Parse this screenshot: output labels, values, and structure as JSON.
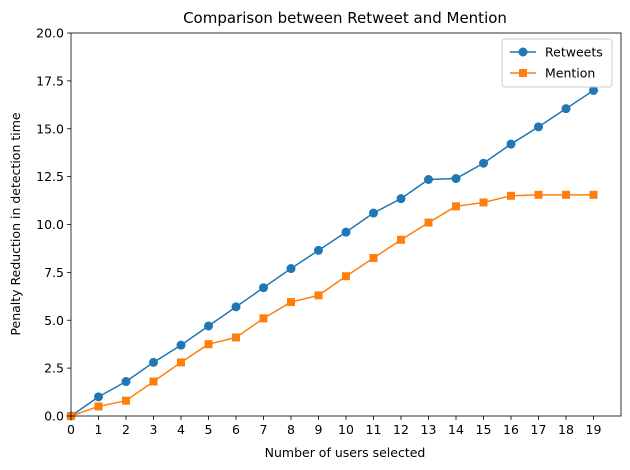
{
  "chart_data": {
    "type": "line",
    "title": "Comparison between Retweet and Mention",
    "xlabel": "Number of users selected",
    "ylabel": "Penalty Reduction in detection time",
    "x": [
      0,
      1,
      2,
      3,
      4,
      5,
      6,
      7,
      8,
      9,
      10,
      11,
      12,
      13,
      14,
      15,
      16,
      17,
      18,
      19
    ],
    "xlim": [
      0,
      20
    ],
    "ylim": [
      0,
      20
    ],
    "xticks": [
      "0",
      "1",
      "2",
      "3",
      "4",
      "5",
      "6",
      "7",
      "8",
      "9",
      "10",
      "11",
      "12",
      "13",
      "14",
      "15",
      "16",
      "17",
      "18",
      "19"
    ],
    "yticks": [
      "0.0",
      "2.5",
      "5.0",
      "7.5",
      "10.0",
      "12.5",
      "15.0",
      "17.5",
      "20.0"
    ],
    "grid": false,
    "legend_position": "top-right",
    "series": [
      {
        "name": "Retweets",
        "color": "#1f77b4",
        "marker": "circle",
        "values": [
          0.0,
          1.0,
          1.8,
          2.8,
          3.7,
          4.7,
          5.7,
          6.7,
          7.7,
          8.65,
          9.6,
          10.6,
          11.35,
          12.35,
          12.4,
          13.2,
          14.2,
          15.1,
          16.05,
          17.0
        ]
      },
      {
        "name": "Mention",
        "color": "#ff7f0e",
        "marker": "square",
        "values": [
          0.0,
          0.5,
          0.8,
          1.8,
          2.8,
          3.75,
          4.1,
          5.1,
          5.95,
          6.3,
          7.3,
          8.25,
          9.2,
          10.1,
          10.95,
          11.15,
          11.5,
          11.55,
          11.55,
          11.55
        ]
      }
    ]
  }
}
